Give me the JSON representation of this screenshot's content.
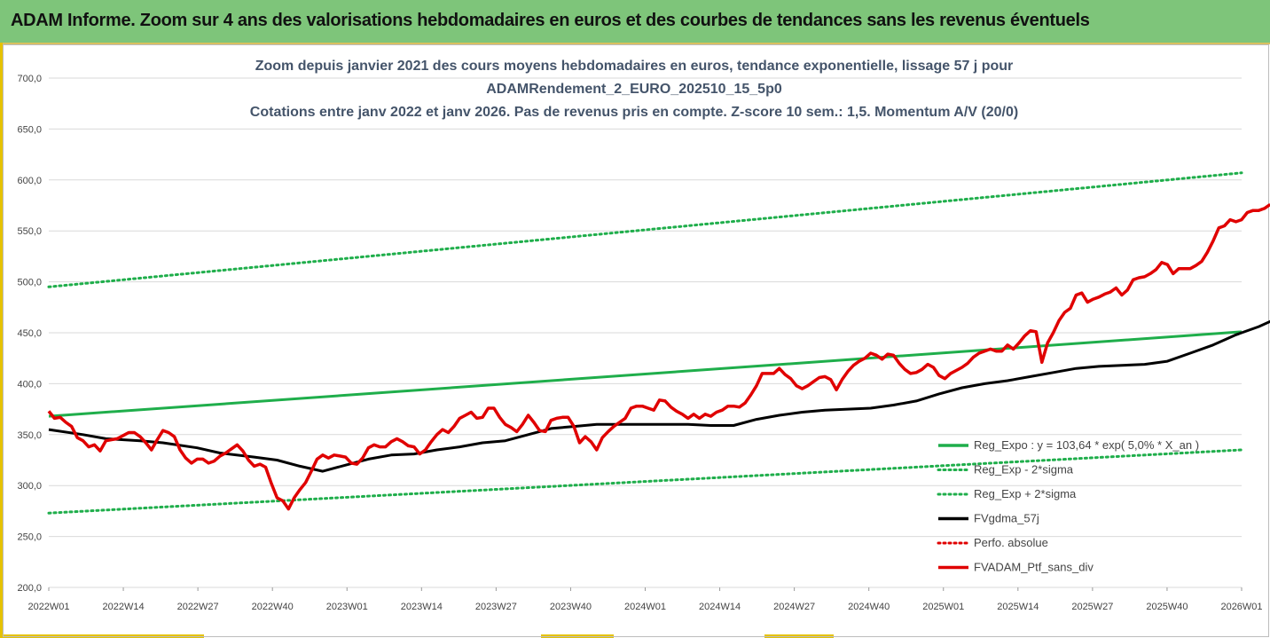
{
  "banner": {
    "title": "ADAM Informe. Zoom sur 4 ans des valorisations hebdomadaires en euros et des courbes de tendances sans les revenus éventuels"
  },
  "colors": {
    "green": "#1fae4b",
    "black": "#000000",
    "red": "#e00000",
    "banner": "#7ec57a",
    "grid": "#d9d9d9"
  },
  "chart_data": {
    "type": "line",
    "title_lines": [
      "Zoom depuis janvier 2021 des cours moyens hebdomadaires  en euros, tendance exponentielle, lissage 57 j pour",
      "ADAMRendement_2_EURO_202510_15_5p0",
      "Cotations entre janv 2022 et janv 2026. Pas de revenus pris en compte. Z-score 10 sem.: 1,5. Momentum A/V (20/0)"
    ],
    "ylim": [
      200,
      700
    ],
    "y_ticks": [
      "200,0",
      "250,0",
      "300,0",
      "350,0",
      "400,0",
      "450,0",
      "500,0",
      "550,0",
      "600,0",
      "650,0",
      "700,0"
    ],
    "x_ticks": [
      "2022W01",
      "2022W14",
      "2022W27",
      "2022W40",
      "2023W01",
      "2023W14",
      "2023W27",
      "2023W40",
      "2024W01",
      "2024W14",
      "2024W27",
      "2024W40",
      "2025W01",
      "2025W14",
      "2025W27",
      "2025W40",
      "2026W01"
    ],
    "grid": "horizontal",
    "legend_position": "right",
    "series": [
      {
        "name": "Reg_Expo : y = 103,64 * exp( 5,0% *  X_an )",
        "style": "solid",
        "color": "#1fae4b",
        "points": [
          [
            0,
            368
          ],
          [
            209,
            451
          ]
        ]
      },
      {
        "name": "Reg_Exp - 2*sigma",
        "style": "dotted",
        "color": "#1fae4b",
        "points": [
          [
            0,
            273
          ],
          [
            209,
            335
          ]
        ]
      },
      {
        "name": "Reg_Exp + 2*sigma",
        "style": "dotted",
        "color": "#1fae4b",
        "points": [
          [
            0,
            495
          ],
          [
            209,
            607
          ]
        ]
      },
      {
        "name": "FVgdma_57j",
        "style": "solid",
        "color": "#000000",
        "points": [
          [
            0,
            355
          ],
          [
            6,
            350
          ],
          [
            10,
            346
          ],
          [
            16,
            344
          ],
          [
            20,
            342
          ],
          [
            26,
            337
          ],
          [
            30,
            332
          ],
          [
            36,
            328
          ],
          [
            40,
            325
          ],
          [
            44,
            319
          ],
          [
            48,
            314
          ],
          [
            52,
            320
          ],
          [
            56,
            326
          ],
          [
            60,
            330
          ],
          [
            64,
            331
          ],
          [
            68,
            335
          ],
          [
            72,
            338
          ],
          [
            76,
            342
          ],
          [
            80,
            344
          ],
          [
            84,
            350
          ],
          [
            88,
            356
          ],
          [
            92,
            358
          ],
          [
            96,
            360
          ],
          [
            100,
            360
          ],
          [
            104,
            360
          ],
          [
            108,
            360
          ],
          [
            112,
            360
          ],
          [
            116,
            359
          ],
          [
            120,
            359
          ],
          [
            124,
            365
          ],
          [
            128,
            369
          ],
          [
            132,
            372
          ],
          [
            136,
            374
          ],
          [
            140,
            375
          ],
          [
            144,
            376
          ],
          [
            148,
            379
          ],
          [
            152,
            383
          ],
          [
            156,
            390
          ],
          [
            160,
            396
          ],
          [
            164,
            400
          ],
          [
            168,
            403
          ],
          [
            172,
            407
          ],
          [
            176,
            411
          ],
          [
            180,
            415
          ],
          [
            184,
            417
          ],
          [
            188,
            418
          ],
          [
            192,
            419
          ],
          [
            196,
            422
          ],
          [
            200,
            430
          ],
          [
            204,
            438
          ],
          [
            208,
            448
          ],
          [
            212,
            456
          ],
          [
            216,
            466
          ],
          [
            220,
            477
          ],
          [
            224,
            485
          ],
          [
            228,
            495
          ],
          [
            232,
            505
          ],
          [
            236,
            517
          ],
          [
            240,
            530
          ],
          [
            244,
            543
          ],
          [
            248,
            555
          ],
          [
            252,
            564
          ]
        ]
      },
      {
        "name": "Perfo. absolue",
        "style": "dotted",
        "color": "#e00000",
        "points": []
      },
      {
        "name": "FVADAM_Ptf_sans_div",
        "style": "solid",
        "color": "#e00000",
        "points": [
          [
            0,
            373
          ],
          [
            1,
            366
          ],
          [
            2,
            367
          ],
          [
            3,
            362
          ],
          [
            4,
            358
          ],
          [
            5,
            347
          ],
          [
            6,
            344
          ],
          [
            7,
            338
          ],
          [
            8,
            340
          ],
          [
            9,
            334
          ],
          [
            10,
            344
          ],
          [
            11,
            345
          ],
          [
            12,
            346
          ],
          [
            13,
            349
          ],
          [
            14,
            352
          ],
          [
            15,
            352
          ],
          [
            16,
            348
          ],
          [
            17,
            342
          ],
          [
            18,
            335
          ],
          [
            19,
            345
          ],
          [
            20,
            354
          ],
          [
            21,
            352
          ],
          [
            22,
            348
          ],
          [
            23,
            335
          ],
          [
            24,
            327
          ],
          [
            25,
            322
          ],
          [
            26,
            326
          ],
          [
            27,
            326
          ],
          [
            28,
            322
          ],
          [
            29,
            324
          ],
          [
            30,
            329
          ],
          [
            31,
            332
          ],
          [
            32,
            336
          ],
          [
            33,
            340
          ],
          [
            34,
            334
          ],
          [
            35,
            325
          ],
          [
            36,
            319
          ],
          [
            37,
            321
          ],
          [
            38,
            318
          ],
          [
            39,
            302
          ],
          [
            40,
            288
          ],
          [
            41,
            285
          ],
          [
            42,
            277
          ],
          [
            43,
            288
          ],
          [
            44,
            296
          ],
          [
            45,
            303
          ],
          [
            46,
            314
          ],
          [
            47,
            326
          ],
          [
            48,
            330
          ],
          [
            49,
            327
          ],
          [
            50,
            330
          ],
          [
            51,
            329
          ],
          [
            52,
            328
          ],
          [
            53,
            322
          ],
          [
            54,
            321
          ],
          [
            55,
            327
          ],
          [
            56,
            337
          ],
          [
            57,
            340
          ],
          [
            58,
            338
          ],
          [
            59,
            338
          ],
          [
            60,
            343
          ],
          [
            61,
            346
          ],
          [
            62,
            343
          ],
          [
            63,
            339
          ],
          [
            64,
            338
          ],
          [
            65,
            331
          ],
          [
            66,
            335
          ],
          [
            67,
            343
          ],
          [
            68,
            350
          ],
          [
            69,
            355
          ],
          [
            70,
            352
          ],
          [
            71,
            358
          ],
          [
            72,
            366
          ],
          [
            73,
            369
          ],
          [
            74,
            372
          ],
          [
            75,
            366
          ],
          [
            76,
            367
          ],
          [
            77,
            376
          ],
          [
            78,
            376
          ],
          [
            79,
            367
          ],
          [
            80,
            360
          ],
          [
            81,
            357
          ],
          [
            82,
            353
          ],
          [
            83,
            360
          ],
          [
            84,
            369
          ],
          [
            85,
            362
          ],
          [
            86,
            354
          ],
          [
            87,
            353
          ],
          [
            88,
            364
          ],
          [
            89,
            366
          ],
          [
            90,
            367
          ],
          [
            91,
            367
          ],
          [
            92,
            358
          ],
          [
            93,
            342
          ],
          [
            94,
            348
          ],
          [
            95,
            343
          ],
          [
            96,
            335
          ],
          [
            97,
            347
          ],
          [
            98,
            353
          ],
          [
            99,
            358
          ],
          [
            100,
            362
          ],
          [
            101,
            366
          ],
          [
            102,
            376
          ],
          [
            103,
            378
          ],
          [
            104,
            378
          ],
          [
            105,
            376
          ],
          [
            106,
            374
          ],
          [
            107,
            384
          ],
          [
            108,
            383
          ],
          [
            109,
            377
          ],
          [
            110,
            373
          ],
          [
            111,
            370
          ],
          [
            112,
            366
          ],
          [
            113,
            370
          ],
          [
            114,
            366
          ],
          [
            115,
            370
          ],
          [
            116,
            368
          ],
          [
            117,
            372
          ],
          [
            118,
            374
          ],
          [
            119,
            378
          ],
          [
            120,
            378
          ],
          [
            121,
            377
          ],
          [
            122,
            381
          ],
          [
            123,
            389
          ],
          [
            124,
            398
          ],
          [
            125,
            410
          ],
          [
            126,
            410
          ],
          [
            127,
            410
          ],
          [
            128,
            415
          ],
          [
            129,
            409
          ],
          [
            130,
            405
          ],
          [
            131,
            398
          ],
          [
            132,
            395
          ],
          [
            133,
            398
          ],
          [
            134,
            402
          ],
          [
            135,
            406
          ],
          [
            136,
            407
          ],
          [
            137,
            404
          ],
          [
            138,
            394
          ],
          [
            139,
            404
          ],
          [
            140,
            412
          ],
          [
            141,
            418
          ],
          [
            142,
            422
          ],
          [
            143,
            425
          ],
          [
            144,
            430
          ],
          [
            145,
            428
          ],
          [
            146,
            424
          ],
          [
            147,
            429
          ],
          [
            148,
            428
          ],
          [
            149,
            420
          ],
          [
            150,
            414
          ],
          [
            151,
            410
          ],
          [
            152,
            411
          ],
          [
            153,
            414
          ],
          [
            154,
            419
          ],
          [
            155,
            416
          ],
          [
            156,
            408
          ],
          [
            157,
            405
          ],
          [
            158,
            410
          ],
          [
            159,
            413
          ],
          [
            160,
            416
          ],
          [
            161,
            420
          ],
          [
            162,
            426
          ],
          [
            163,
            430
          ],
          [
            164,
            432
          ],
          [
            165,
            434
          ],
          [
            166,
            432
          ],
          [
            167,
            432
          ],
          [
            168,
            438
          ],
          [
            169,
            434
          ],
          [
            170,
            440
          ],
          [
            171,
            447
          ],
          [
            172,
            452
          ],
          [
            173,
            451
          ],
          [
            174,
            421
          ],
          [
            175,
            440
          ],
          [
            176,
            450
          ],
          [
            177,
            462
          ],
          [
            178,
            470
          ],
          [
            179,
            474
          ],
          [
            180,
            487
          ],
          [
            181,
            489
          ],
          [
            182,
            480
          ],
          [
            183,
            483
          ],
          [
            184,
            485
          ],
          [
            185,
            488
          ],
          [
            186,
            490
          ],
          [
            187,
            494
          ],
          [
            188,
            487
          ],
          [
            189,
            492
          ],
          [
            190,
            502
          ],
          [
            191,
            504
          ],
          [
            192,
            505
          ],
          [
            193,
            508
          ],
          [
            194,
            512
          ],
          [
            195,
            519
          ],
          [
            196,
            517
          ],
          [
            197,
            508
          ],
          [
            198,
            513
          ],
          [
            199,
            513
          ],
          [
            200,
            513
          ],
          [
            201,
            516
          ],
          [
            202,
            520
          ],
          [
            203,
            529
          ],
          [
            204,
            540
          ],
          [
            205,
            553
          ],
          [
            206,
            555
          ],
          [
            207,
            561
          ],
          [
            208,
            559
          ],
          [
            209,
            561
          ],
          [
            210,
            568
          ],
          [
            211,
            570
          ],
          [
            212,
            570
          ],
          [
            213,
            572
          ],
          [
            214,
            576
          ]
        ]
      }
    ]
  }
}
